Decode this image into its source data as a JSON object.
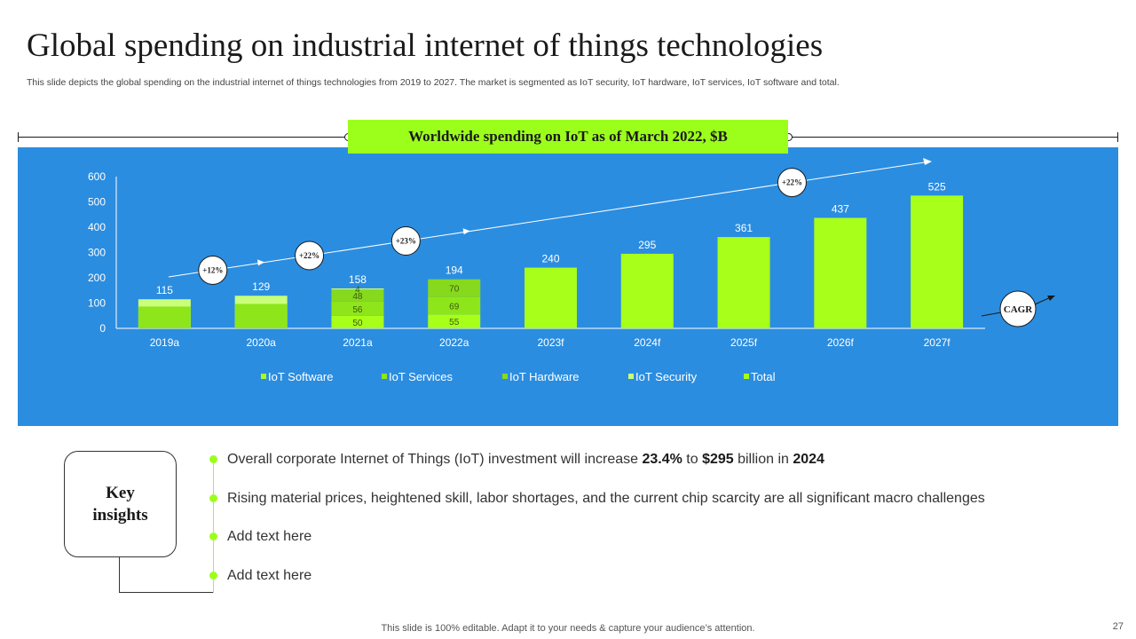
{
  "slide": {
    "title": "Global spending on industrial internet of things technologies",
    "subtitle": "This slide depicts the global spending on the industrial internet of things technologies from 2019 to 2027. The market is segmented as IoT security, IoT hardware, IoT services, IoT software and total.",
    "banner": "Worldwide spending on IoT as of March 2022, $B",
    "footer": "This slide is 100% editable. Adapt it to your needs & capture your audience’s attention.",
    "page_number": "27"
  },
  "colors": {
    "panel": "#2b8de0",
    "accent_green": "#9cff1b",
    "bar_total": "#a8ff1a",
    "software": "#a8ff1a",
    "services": "#8ee61a",
    "hardware": "#86d91c",
    "security": "#c9ff7a"
  },
  "chart_data": {
    "type": "bar",
    "title": "Worldwide spending on IoT as of March 2022, $B",
    "categories": [
      "2019a",
      "2020a",
      "2021a",
      "2022a",
      "2023f",
      "2024f",
      "2025f",
      "2026f",
      "2027f"
    ],
    "ylim": [
      0,
      600
    ],
    "yticks": [
      0,
      100,
      200,
      300,
      400,
      500,
      600
    ],
    "totals": [
      115,
      129,
      158,
      194,
      240,
      295,
      361,
      437,
      525
    ],
    "series": [
      {
        "name": "IoT Software",
        "values": [
          null,
          null,
          50,
          55,
          null,
          null,
          null,
          null,
          null
        ]
      },
      {
        "name": "IoT Services",
        "values": [
          null,
          null,
          56,
          69,
          null,
          null,
          null,
          null,
          null
        ]
      },
      {
        "name": "IoT Hardware",
        "values": [
          null,
          null,
          48,
          70,
          null,
          null,
          null,
          null,
          null
        ]
      },
      {
        "name": "IoT Security",
        "values": [
          null,
          null,
          4,
          null,
          null,
          null,
          null,
          null,
          null
        ]
      },
      {
        "name": "Total",
        "values": [
          115,
          129,
          158,
          194,
          240,
          295,
          361,
          437,
          525
        ]
      }
    ],
    "segment_labels": [
      {
        "category": "2021a",
        "values": [
          "50",
          "56",
          "48",
          "4"
        ]
      },
      {
        "category": "2022a",
        "values": [
          "55",
          "69",
          "70"
        ]
      }
    ],
    "growth_annotations": [
      {
        "label": "+12%",
        "between": [
          "2019a",
          "2020a"
        ]
      },
      {
        "label": "+22%",
        "between": [
          "2020a",
          "2021a"
        ]
      },
      {
        "label": "+23%",
        "between": [
          "2021a",
          "2022a"
        ]
      },
      {
        "label": "+22%",
        "between": [
          "2025f",
          "2026f"
        ]
      }
    ],
    "cagr_label": "CAGR",
    "legend": [
      "IoT Software",
      "IoT Services",
      "IoT Hardware",
      "IoT Security",
      "Total"
    ],
    "legend_position": "bottom"
  },
  "insights": {
    "box_label_line1": "Key",
    "box_label_line2": "insights",
    "items": [
      {
        "parts": [
          {
            "text": "Overall corporate Internet of Things (IoT) investment will increase ",
            "bold": false
          },
          {
            "text": "23.4%",
            "bold": true
          },
          {
            "text": " to ",
            "bold": false
          },
          {
            "text": "$295",
            "bold": true
          },
          {
            "text": " billion in ",
            "bold": false
          },
          {
            "text": "2024",
            "bold": true
          }
        ]
      },
      {
        "parts": [
          {
            "text": "Rising material prices, heightened skill, labor shortages, and the current chip scarcity are all significant macro challenges",
            "bold": false
          }
        ]
      },
      {
        "parts": [
          {
            "text": "Add text here",
            "bold": false
          }
        ]
      },
      {
        "parts": [
          {
            "text": "Add text here",
            "bold": false
          }
        ]
      }
    ]
  }
}
